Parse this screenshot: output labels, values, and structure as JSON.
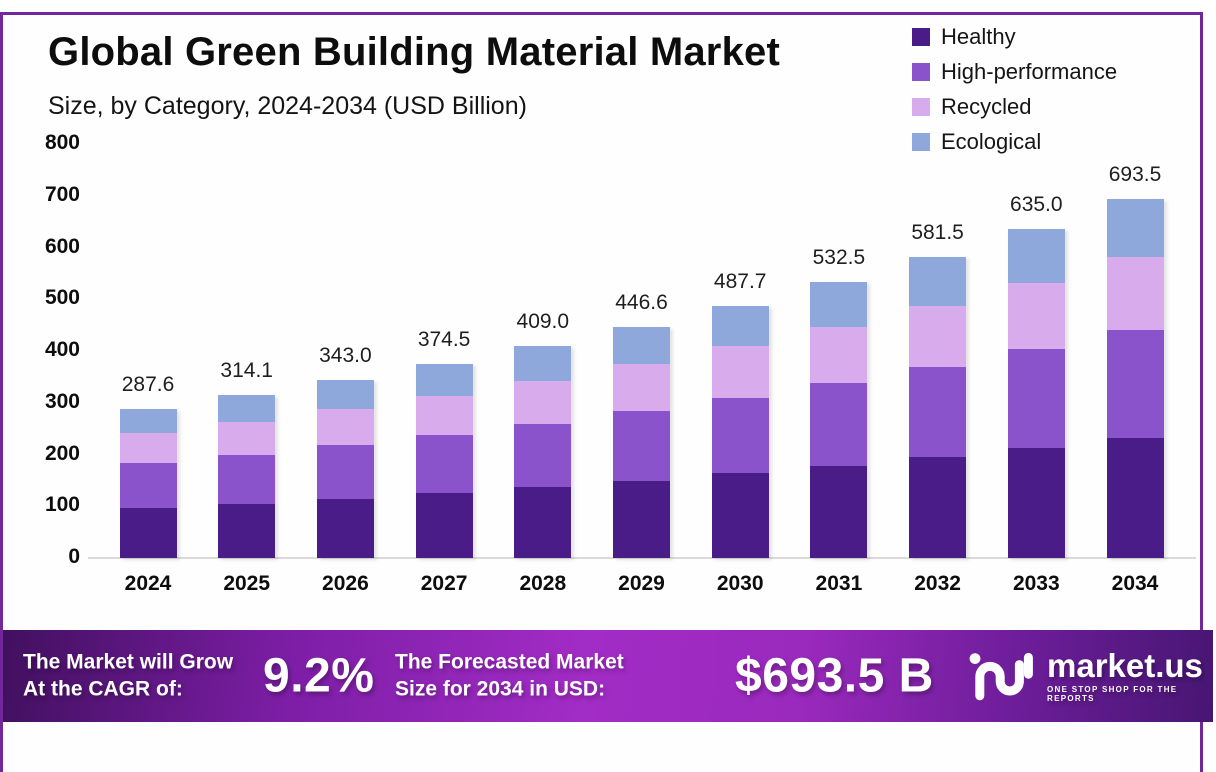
{
  "title": "Global Green Building Material Market",
  "subtitle": "Size, by Category, 2024-2034 (USD Billion)",
  "chart_data": {
    "type": "bar",
    "stacked": true,
    "title": "Global Green Building Material Market Size, by Category, 2024-2034 (USD Billion)",
    "categories": [
      "2024",
      "2025",
      "2026",
      "2027",
      "2028",
      "2029",
      "2030",
      "2031",
      "2032",
      "2033",
      "2034"
    ],
    "totals": [
      287.6,
      314.1,
      343.0,
      374.5,
      409.0,
      446.6,
      487.7,
      532.5,
      581.5,
      635.0,
      693.5
    ],
    "series": [
      {
        "name": "Healthy",
        "color": "#491c87",
        "values": [
          96.3,
          105.2,
          114.9,
          125.5,
          137.0,
          149.6,
          163.4,
          178.4,
          194.8,
          212.7,
          232.3
        ]
      },
      {
        "name": "High-performance",
        "color": "#8a53cc",
        "values": [
          86.3,
          94.2,
          102.9,
          112.4,
          122.7,
          134.0,
          146.3,
          159.8,
          174.5,
          190.5,
          208.1
        ]
      },
      {
        "name": "Recycled",
        "color": "#d8abec",
        "values": [
          58.4,
          63.8,
          69.6,
          76.0,
          83.0,
          90.7,
          99.0,
          108.1,
          118.0,
          128.9,
          140.8
        ]
      },
      {
        "name": "Ecological",
        "color": "#8fa8db",
        "values": [
          46.6,
          50.9,
          55.6,
          60.6,
          66.3,
          72.3,
          79.0,
          86.2,
          94.2,
          102.9,
          112.3
        ]
      }
    ],
    "xlabel": "",
    "ylabel": "",
    "ylim": [
      0,
      800
    ],
    "yticks": [
      0,
      100,
      200,
      300,
      400,
      500,
      600,
      700,
      800
    ],
    "grid": false,
    "legend_position": "top-right",
    "bar_value_labels": "totals shown above each bar"
  },
  "footer": {
    "cagr_line1": "The Market will Grow",
    "cagr_line2": "At the CAGR of:",
    "cagr_value": "9.2%",
    "forecast_line1": "The Forecasted Market",
    "forecast_line2": "Size for 2034 in USD:",
    "forecast_value": "$693.5 B",
    "brand": "market.us",
    "brand_tagline": "ONE STOP SHOP FOR THE REPORTS"
  },
  "colors": {
    "frame_border": "#72279c",
    "banner_gradient_start": "#41105f",
    "banner_gradient_mid": "#a22cc6",
    "banner_gradient_end": "#471672",
    "baseline": "#dadada",
    "text": "#0d0d0d"
  }
}
